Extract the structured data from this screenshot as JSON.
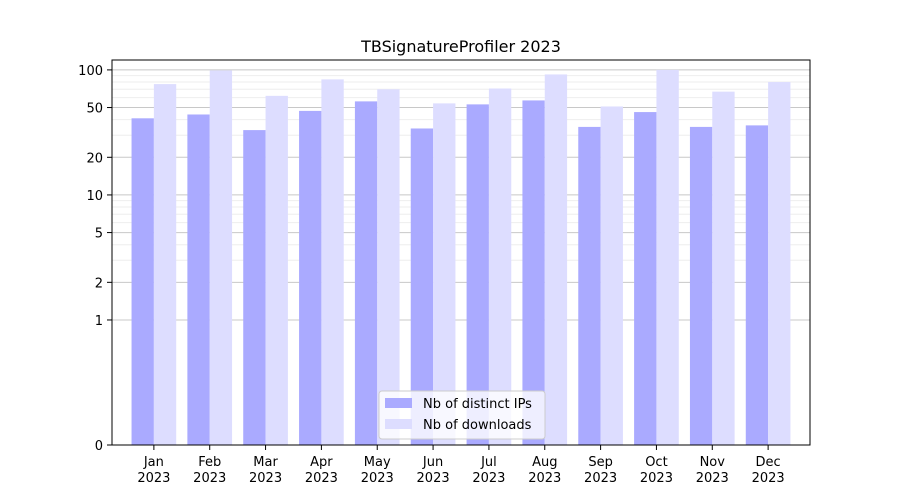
{
  "chart_data": {
    "type": "bar",
    "title": "TBSignatureProfiler 2023",
    "xlabel": "",
    "ylabel": "",
    "yscale": "symlog",
    "ylim": [
      0,
      120
    ],
    "yticks": [
      0,
      1,
      2,
      5,
      10,
      20,
      50,
      100
    ],
    "grid": true,
    "legend_position": "bottom-center",
    "categories": [
      [
        "Jan",
        "2023"
      ],
      [
        "Feb",
        "2023"
      ],
      [
        "Mar",
        "2023"
      ],
      [
        "Apr",
        "2023"
      ],
      [
        "May",
        "2023"
      ],
      [
        "Jun",
        "2023"
      ],
      [
        "Jul",
        "2023"
      ],
      [
        "Aug",
        "2023"
      ],
      [
        "Sep",
        "2023"
      ],
      [
        "Oct",
        "2023"
      ],
      [
        "Nov",
        "2023"
      ],
      [
        "Dec",
        "2023"
      ]
    ],
    "series": [
      {
        "name": "Nb of distinct IPs",
        "color": "#aaaaff",
        "values": [
          41,
          44,
          33,
          47,
          56,
          34,
          53,
          57,
          35,
          46,
          35,
          36
        ]
      },
      {
        "name": "Nb of downloads",
        "color": "#ddddff",
        "values": [
          77,
          99,
          62,
          84,
          70,
          54,
          71,
          92,
          51,
          100,
          67,
          80
        ]
      }
    ]
  }
}
